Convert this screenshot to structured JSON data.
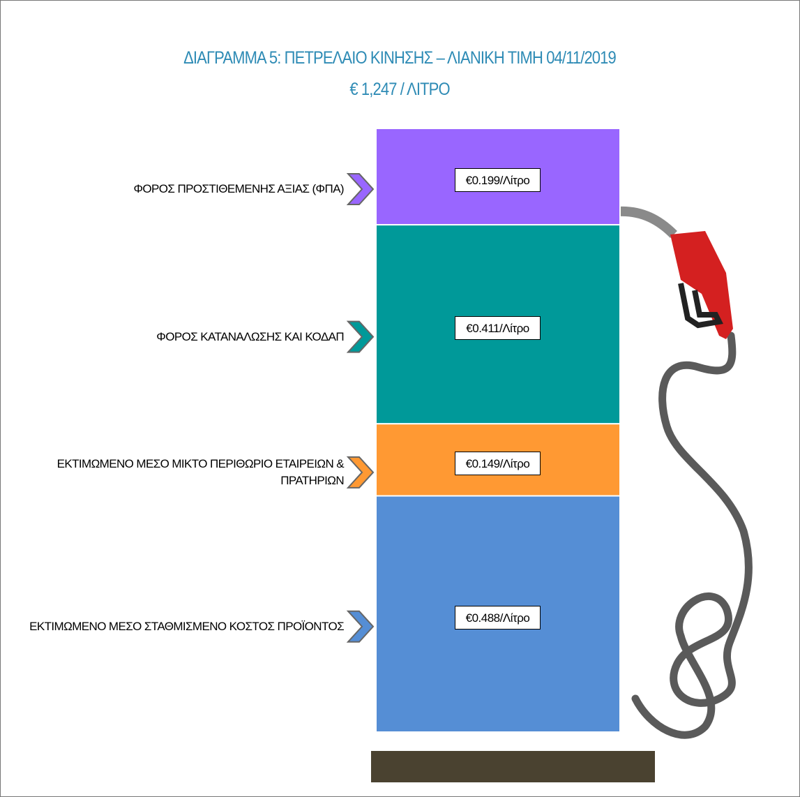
{
  "chart_data": {
    "type": "bar",
    "stacked": true,
    "title": "ΔΙΑΓΡΑΜΜΑ 5: ΠΕΤΡΕΛΑΙΟ ΚΙΝΗΣΗΣ – ΛΙΑΝΙΚΗ ΤΙΜΗ 04/11/2019",
    "subtitle": "€ 1,247 / ΛΙΤΡΟ",
    "series": [
      {
        "name": "ΕΚΤΙΜΩΜΕΝΟ  ΜΕΣΟ ΣΤΑΘΜΙΣΜΕΝΟ ΚΟΣΤΟΣ ΠΡΟΪΟΝΤΟΣ",
        "color": "#558ed5",
        "values": [
          0.488
        ],
        "value_labels": [
          "€0.488/Λίτρο"
        ]
      },
      {
        "name": "ΕΚΤΙΜΩΜΕΝΟ  ΜΕΣΟ ΜΙΚΤΟ ΠΕΡΙΘΩΡΙΟ ΕΤΑΙΡΕΙΩΝ & ΠΡΑΤΗΡΙΩΝ",
        "color": "#ff9933",
        "values": [
          0.149
        ],
        "value_labels": [
          "€0.149/Λίτρο"
        ]
      },
      {
        "name": "ΦΟΡΟΣ ΚΑΤΑΝΑΛΩΣΗΣ  ΚΑΙ ΚΟΔΑΠ",
        "color": "#009999",
        "values": [
          0.411
        ],
        "value_labels": [
          "€0.411/Λίτρο"
        ]
      },
      {
        "name": "ΦΟΡΟΣ ΠΡΟΣΤΙΘΕΜΕΝΗΣ ΑΞΙΑΣ (ΦΠΑ)",
        "color": "#9966ff",
        "values": [
          0.199
        ],
        "value_labels": [
          "€0.199/Λίτρο"
        ]
      }
    ]
  }
}
